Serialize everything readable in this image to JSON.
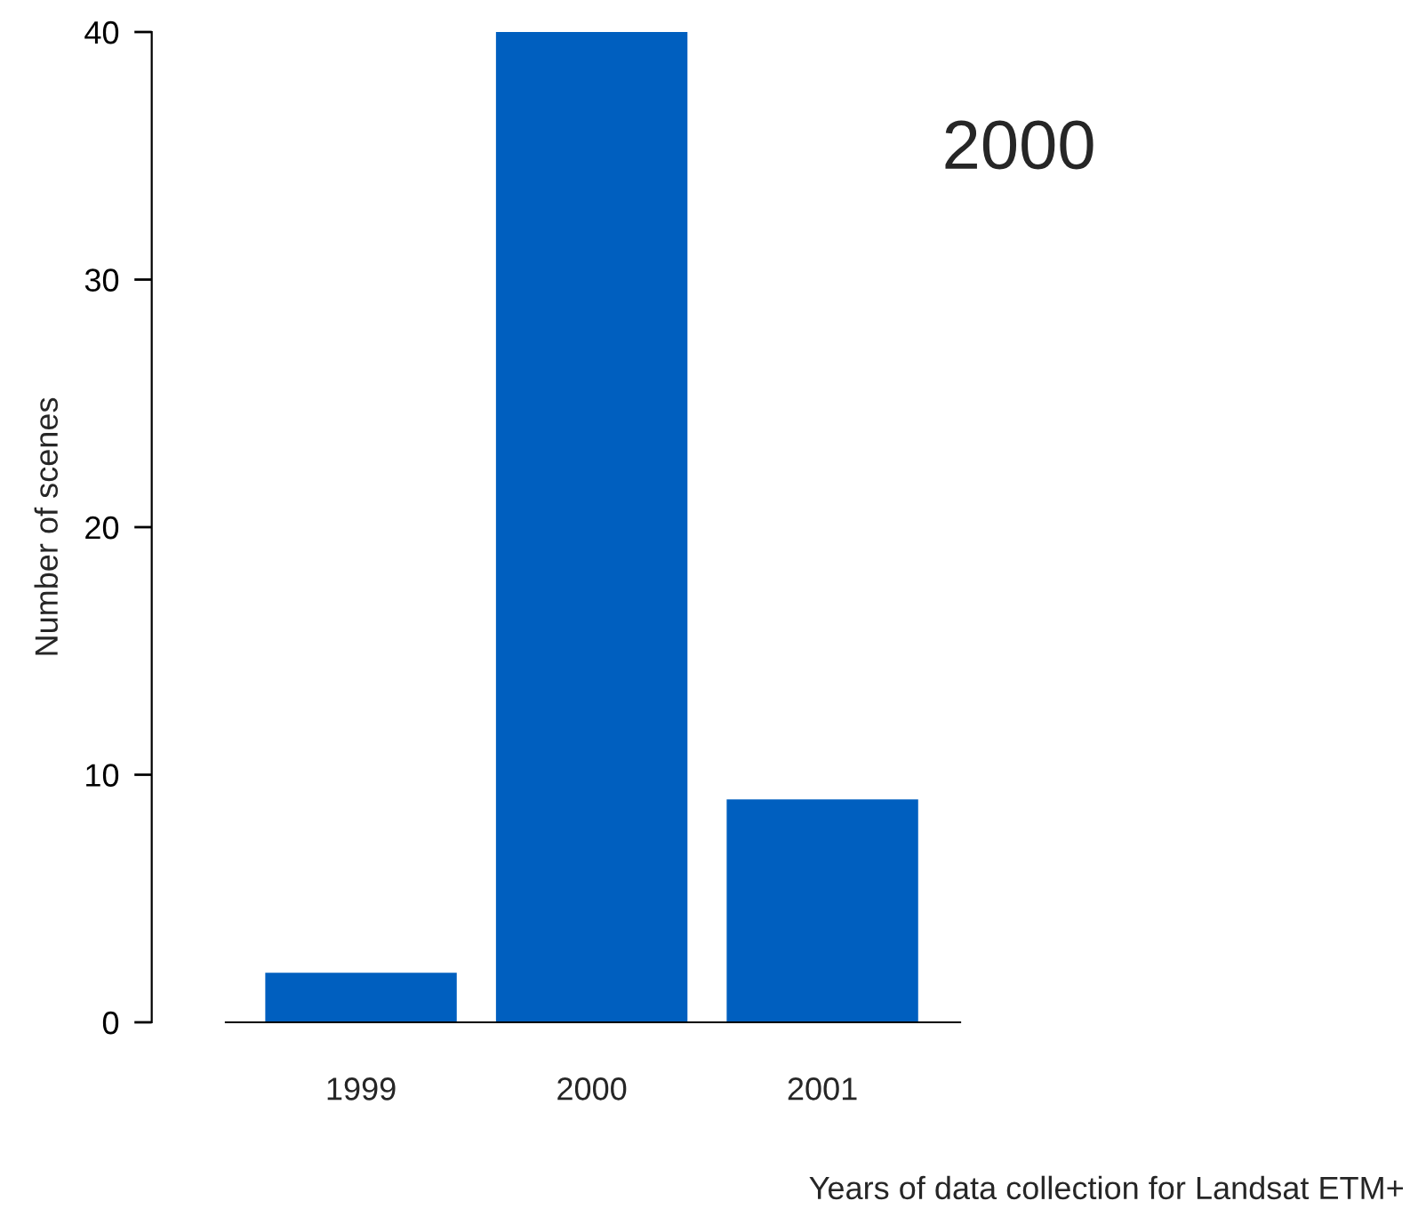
{
  "chart_data": {
    "type": "bar",
    "categories": [
      "1999",
      "2000",
      "2001"
    ],
    "values": [
      2,
      40,
      9
    ],
    "color": "#005fbf",
    "ylim": [
      0,
      40
    ],
    "yticks": [
      0,
      10,
      20,
      30,
      40
    ],
    "xlabel": "Years of data collection for Landsat ETM+",
    "ylabel": "Number of scenes",
    "annotations": [
      "2000"
    ],
    "grid": false,
    "legend": false
  }
}
